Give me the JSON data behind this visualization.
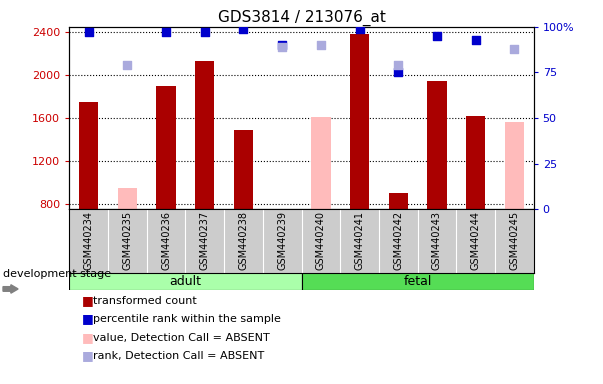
{
  "title": "GDS3814 / 213076_at",
  "samples": [
    "GSM440234",
    "GSM440235",
    "GSM440236",
    "GSM440237",
    "GSM440238",
    "GSM440239",
    "GSM440240",
    "GSM440241",
    "GSM440242",
    "GSM440243",
    "GSM440244",
    "GSM440245"
  ],
  "bar_values": [
    1750,
    null,
    1900,
    2130,
    1490,
    null,
    null,
    2380,
    900,
    1950,
    1620,
    null
  ],
  "bar_absent_values": [
    null,
    950,
    null,
    null,
    null,
    null,
    1610,
    null,
    null,
    null,
    null,
    1560
  ],
  "rank_values": [
    97,
    null,
    97,
    97,
    99,
    90,
    null,
    99,
    75,
    95,
    93,
    null
  ],
  "rank_absent_values": [
    null,
    79,
    null,
    null,
    null,
    89,
    90,
    null,
    79,
    null,
    null,
    88
  ],
  "bar_color": "#aa0000",
  "bar_absent_color": "#ffbbbb",
  "rank_color": "#0000cc",
  "rank_absent_color": "#aaaadd",
  "ylim_left": [
    750,
    2450
  ],
  "ylim_right": [
    0,
    100
  ],
  "yticks_left": [
    800,
    1200,
    1600,
    2000,
    2400
  ],
  "yticks_right": [
    0,
    25,
    50,
    75,
    100
  ],
  "group_adult": [
    "GSM440234",
    "GSM440235",
    "GSM440236",
    "GSM440237",
    "GSM440238",
    "GSM440239"
  ],
  "group_fetal": [
    "GSM440240",
    "GSM440241",
    "GSM440242",
    "GSM440243",
    "GSM440244",
    "GSM440245"
  ],
  "adult_color": "#aaffaa",
  "fetal_color": "#55dd55",
  "stage_label": "development stage",
  "legend_items": [
    {
      "label": "transformed count",
      "color": "#aa0000"
    },
    {
      "label": "percentile rank within the sample",
      "color": "#0000cc"
    },
    {
      "label": "value, Detection Call = ABSENT",
      "color": "#ffbbbb"
    },
    {
      "label": "rank, Detection Call = ABSENT",
      "color": "#aaaadd"
    }
  ],
  "bar_width": 0.5,
  "rank_marker_size": 40,
  "tick_label_color_left": "#cc0000",
  "tick_label_color_right": "#0000cc",
  "title_fontsize": 11,
  "tick_fontsize": 8,
  "label_fontsize": 8,
  "xticklabel_bg": "#cccccc"
}
